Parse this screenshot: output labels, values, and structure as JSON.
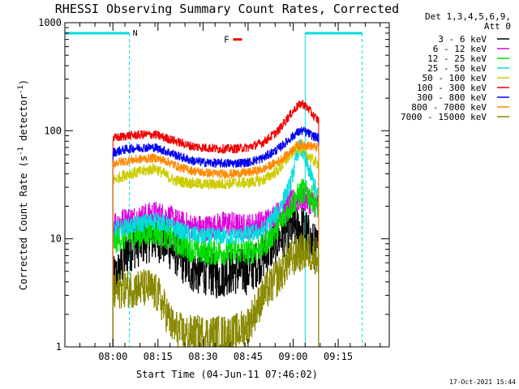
{
  "chart_data": {
    "type": "line",
    "title": "RHESSI Observing Summary Count Rates, Corrected",
    "xlabel": "Start Time (04-Jun-11 07:46:02)",
    "ylabel_main": "Corrected Count Rate (s",
    "ylabel_exp1": "-1",
    "ylabel_mid": " detector",
    "ylabel_exp2": "-1",
    "ylabel_end": ")",
    "y_scale": "log",
    "ylim": [
      1,
      1000
    ],
    "xlim_minutes": [
      -16,
      92
    ],
    "x_ticks": [
      {
        "m": 0,
        "label": "08:00"
      },
      {
        "m": 15,
        "label": "08:15"
      },
      {
        "m": 30,
        "label": "08:30"
      },
      {
        "m": 45,
        "label": "08:45"
      },
      {
        "m": 60,
        "label": "09:00"
      },
      {
        "m": 75,
        "label": "09:15"
      }
    ],
    "y_ticks": [
      {
        "v": 1,
        "label": "1"
      },
      {
        "v": 10,
        "label": "10"
      },
      {
        "v": 100,
        "label": "100"
      },
      {
        "v": 1000,
        "label": "1000"
      }
    ],
    "legend_header": [
      "Det 1,3,4,5,6,9,",
      "Att 0"
    ],
    "night_markers": [
      {
        "label": "N",
        "x_start": -16,
        "x_end": 5.5
      },
      {
        "label": "",
        "x_start": 64,
        "x_end": 83
      }
    ],
    "flare_marker": {
      "label": "F",
      "x_start": 40,
      "x_end": 43,
      "y": 700
    },
    "timestamp": "17-Oct-2021 15:44",
    "x_data_start": 0,
    "x_data_end": 68.5,
    "series": [
      {
        "name": "3 - 6 keV",
        "color": "#000000",
        "noise": 0.22,
        "points": [
          [
            0,
            4.0
          ],
          [
            2,
            5.0
          ],
          [
            5,
            8.0
          ],
          [
            8,
            9.0
          ],
          [
            12,
            10.0
          ],
          [
            15,
            10.0
          ],
          [
            18,
            9.0
          ],
          [
            22,
            7.0
          ],
          [
            25,
            5.5
          ],
          [
            28,
            5.0
          ],
          [
            32,
            5.0
          ],
          [
            35,
            4.5
          ],
          [
            38,
            5.0
          ],
          [
            42,
            5.0
          ],
          [
            45,
            5.0
          ],
          [
            48,
            6.0
          ],
          [
            52,
            8.0
          ],
          [
            55,
            10.0
          ],
          [
            58,
            12.0
          ],
          [
            62,
            13.0
          ],
          [
            64,
            12.0
          ],
          [
            66,
            9.0
          ],
          [
            68,
            8.0
          ]
        ]
      },
      {
        "name": "6 - 12 keV",
        "color": "#dd00dd",
        "noise": 0.12,
        "points": [
          [
            0,
            14.0
          ],
          [
            5,
            15.0
          ],
          [
            10,
            16.0
          ],
          [
            14,
            17.0
          ],
          [
            18,
            16.0
          ],
          [
            22,
            14.0
          ],
          [
            26,
            13.0
          ],
          [
            30,
            12.5
          ],
          [
            34,
            13.0
          ],
          [
            38,
            14.0
          ],
          [
            42,
            13.0
          ],
          [
            45,
            13.0
          ],
          [
            50,
            14.0
          ],
          [
            55,
            17.0
          ],
          [
            60,
            22.0
          ],
          [
            63,
            24.0
          ],
          [
            66,
            22.0
          ],
          [
            68,
            20.0
          ]
        ]
      },
      {
        "name": "12 - 25 keV",
        "color": "#00dd00",
        "noise": 0.12,
        "points": [
          [
            0,
            9.5
          ],
          [
            5,
            10.5
          ],
          [
            10,
            11.0
          ],
          [
            14,
            11.5
          ],
          [
            18,
            10.5
          ],
          [
            22,
            9.0
          ],
          [
            26,
            8.0
          ],
          [
            30,
            7.5
          ],
          [
            35,
            7.5
          ],
          [
            40,
            7.5
          ],
          [
            45,
            7.5
          ],
          [
            50,
            8.5
          ],
          [
            55,
            13.0
          ],
          [
            60,
            22.0
          ],
          [
            63,
            28.0
          ],
          [
            66,
            24.0
          ],
          [
            68,
            20.0
          ]
        ]
      },
      {
        "name": "25 - 50 keV",
        "color": "#00dddd",
        "noise": 0.08,
        "points": [
          [
            0,
            12.0
          ],
          [
            5,
            13.0
          ],
          [
            10,
            14.0
          ],
          [
            14,
            15.0
          ],
          [
            18,
            13.5
          ],
          [
            22,
            12.0
          ],
          [
            26,
            11.0
          ],
          [
            30,
            10.5
          ],
          [
            35,
            10.5
          ],
          [
            40,
            10.5
          ],
          [
            45,
            11.0
          ],
          [
            50,
            12.0
          ],
          [
            55,
            18.0
          ],
          [
            59,
            32.0
          ],
          [
            61,
            55.0
          ],
          [
            62,
            72.0
          ],
          [
            63,
            65.0
          ],
          [
            65,
            45.0
          ],
          [
            67,
            32.0
          ],
          [
            68,
            25.0
          ]
        ]
      },
      {
        "name": "50 - 100 keV",
        "color": "#cccc00",
        "noise": 0.05,
        "points": [
          [
            0,
            35.0
          ],
          [
            5,
            40.0
          ],
          [
            10,
            42.0
          ],
          [
            14,
            45.0
          ],
          [
            17,
            40.0
          ],
          [
            20,
            35.0
          ],
          [
            25,
            33.0
          ],
          [
            30,
            32.0
          ],
          [
            35,
            32.0
          ],
          [
            40,
            33.0
          ],
          [
            45,
            33.0
          ],
          [
            50,
            35.0
          ],
          [
            55,
            43.0
          ],
          [
            58,
            55.0
          ],
          [
            61,
            70.0
          ],
          [
            63,
            68.0
          ],
          [
            66,
            55.0
          ],
          [
            68,
            50.0
          ]
        ]
      },
      {
        "name": "100 - 300 keV",
        "color": "#ee0000",
        "noise": 0.04,
        "points": [
          [
            0,
            85.0
          ],
          [
            5,
            90.0
          ],
          [
            10,
            92.0
          ],
          [
            14,
            92.0
          ],
          [
            18,
            85.0
          ],
          [
            22,
            78.0
          ],
          [
            26,
            72.0
          ],
          [
            30,
            70.0
          ],
          [
            35,
            68.0
          ],
          [
            40,
            68.0
          ],
          [
            45,
            70.0
          ],
          [
            50,
            78.0
          ],
          [
            55,
            100.0
          ],
          [
            58,
            130.0
          ],
          [
            61,
            165.0
          ],
          [
            63,
            180.0
          ],
          [
            65,
            160.0
          ],
          [
            67,
            135.0
          ],
          [
            69,
            120.0
          ]
        ]
      },
      {
        "name": "300 - 800 keV",
        "color": "#0000ee",
        "noise": 0.04,
        "points": [
          [
            0,
            63.0
          ],
          [
            5,
            68.0
          ],
          [
            10,
            70.0
          ],
          [
            14,
            70.0
          ],
          [
            18,
            64.0
          ],
          [
            22,
            58.0
          ],
          [
            26,
            53.0
          ],
          [
            30,
            51.0
          ],
          [
            35,
            50.0
          ],
          [
            40,
            50.0
          ],
          [
            45,
            51.0
          ],
          [
            50,
            56.0
          ],
          [
            55,
            68.0
          ],
          [
            58,
            80.0
          ],
          [
            61,
            95.0
          ],
          [
            63,
            100.0
          ],
          [
            65,
            95.0
          ],
          [
            67,
            88.0
          ],
          [
            69,
            85.0
          ]
        ]
      },
      {
        "name": "800 - 7000 keV",
        "color": "#ff8800",
        "noise": 0.04,
        "points": [
          [
            0,
            50.0
          ],
          [
            5,
            53.0
          ],
          [
            10,
            55.0
          ],
          [
            14,
            56.0
          ],
          [
            18,
            52.0
          ],
          [
            22,
            46.0
          ],
          [
            26,
            43.0
          ],
          [
            30,
            41.0
          ],
          [
            35,
            40.0
          ],
          [
            40,
            40.0
          ],
          [
            45,
            41.0
          ],
          [
            50,
            44.0
          ],
          [
            55,
            52.0
          ],
          [
            58,
            60.0
          ],
          [
            61,
            72.0
          ],
          [
            63,
            75.0
          ],
          [
            66,
            72.0
          ],
          [
            68,
            70.0
          ]
        ]
      },
      {
        "name": "7000 - 15000 keV",
        "color": "#888800",
        "noise": 0.18,
        "points": [
          [
            0,
            3.0
          ],
          [
            3,
            3.5
          ],
          [
            6,
            3.5
          ],
          [
            9,
            3.5
          ],
          [
            12,
            3.5
          ],
          [
            15,
            3.0
          ],
          [
            17,
            2.3
          ],
          [
            20,
            1.5
          ],
          [
            24,
            1.3
          ],
          [
            30,
            1.3
          ],
          [
            35,
            1.3
          ],
          [
            40,
            1.3
          ],
          [
            45,
            1.6
          ],
          [
            50,
            3.0
          ],
          [
            55,
            4.5
          ],
          [
            58,
            6.0
          ],
          [
            62,
            7.5
          ],
          [
            65,
            7.5
          ],
          [
            68,
            7.0
          ]
        ]
      }
    ]
  }
}
